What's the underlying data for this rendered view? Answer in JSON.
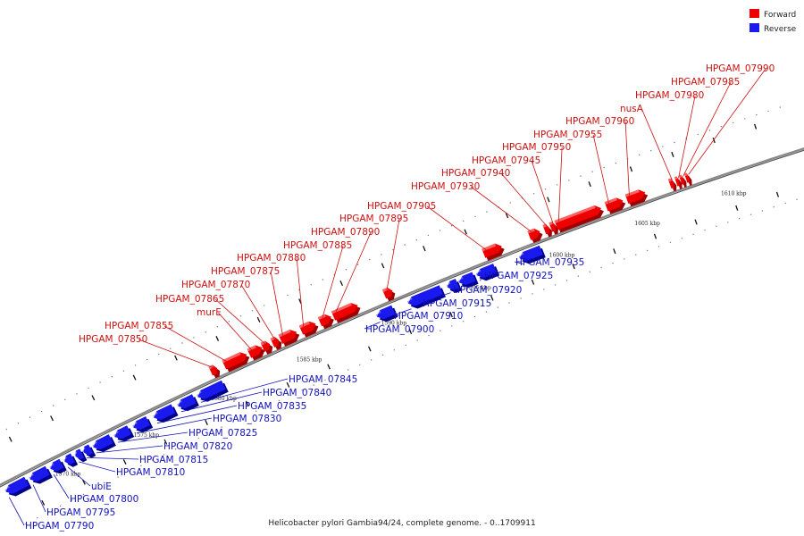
{
  "caption": "Helicobacter pylori Gambia94/24, complete genome. - 0..1709911",
  "legend": [
    {
      "label": "Forward",
      "color": "#ee0000"
    },
    {
      "label": "Reverse",
      "color": "#1a1aee"
    }
  ],
  "colors": {
    "forward": "#ee0000",
    "forward_dark": "#a00000",
    "forward_top": "#ff7a7a",
    "reverse": "#1a1aee",
    "reverse_dark": "#00008a",
    "reverse_top": "#7a7aff",
    "backbone": "#888888",
    "leader_forward": "#cc1111",
    "leader_reverse": "#1111bb"
  },
  "axis_labels": [
    "1570 kbp",
    "1575 kbp",
    "1580 kbp",
    "1585 kbp",
    "1590 kbp",
    "1595 kbp",
    "1600 kbp",
    "1605 kbp",
    "1610 kbp"
  ],
  "forward_genes": [
    "HPGAM_07850",
    "HPGAM_07855",
    "murE",
    "HPGAM_07865",
    "HPGAM_07870",
    "HPGAM_07875",
    "HPGAM_07880",
    "HPGAM_07885",
    "HPGAM_07890",
    "HPGAM_07895",
    "HPGAM_07905",
    "HPGAM_07930",
    "HPGAM_07940",
    "HPGAM_07945",
    "HPGAM_07950",
    "HPGAM_07955",
    "HPGAM_07960",
    "nusA",
    "HPGAM_07980",
    "HPGAM_07985",
    "HPGAM_07990"
  ],
  "reverse_genes": [
    "HPGAM_07790",
    "HPGAM_07795",
    "HPGAM_07800",
    "ubiE",
    "HPGAM_07810",
    "HPGAM_07815",
    "HPGAM_07820",
    "HPGAM_07825",
    "HPGAM_07830",
    "HPGAM_07835",
    "HPGAM_07840",
    "HPGAM_07845",
    "HPGAM_07900",
    "HPGAM_07910",
    "HPGAM_07915",
    "HPGAM_07920",
    "HPGAM_07925",
    "HPGAM_07935"
  ]
}
